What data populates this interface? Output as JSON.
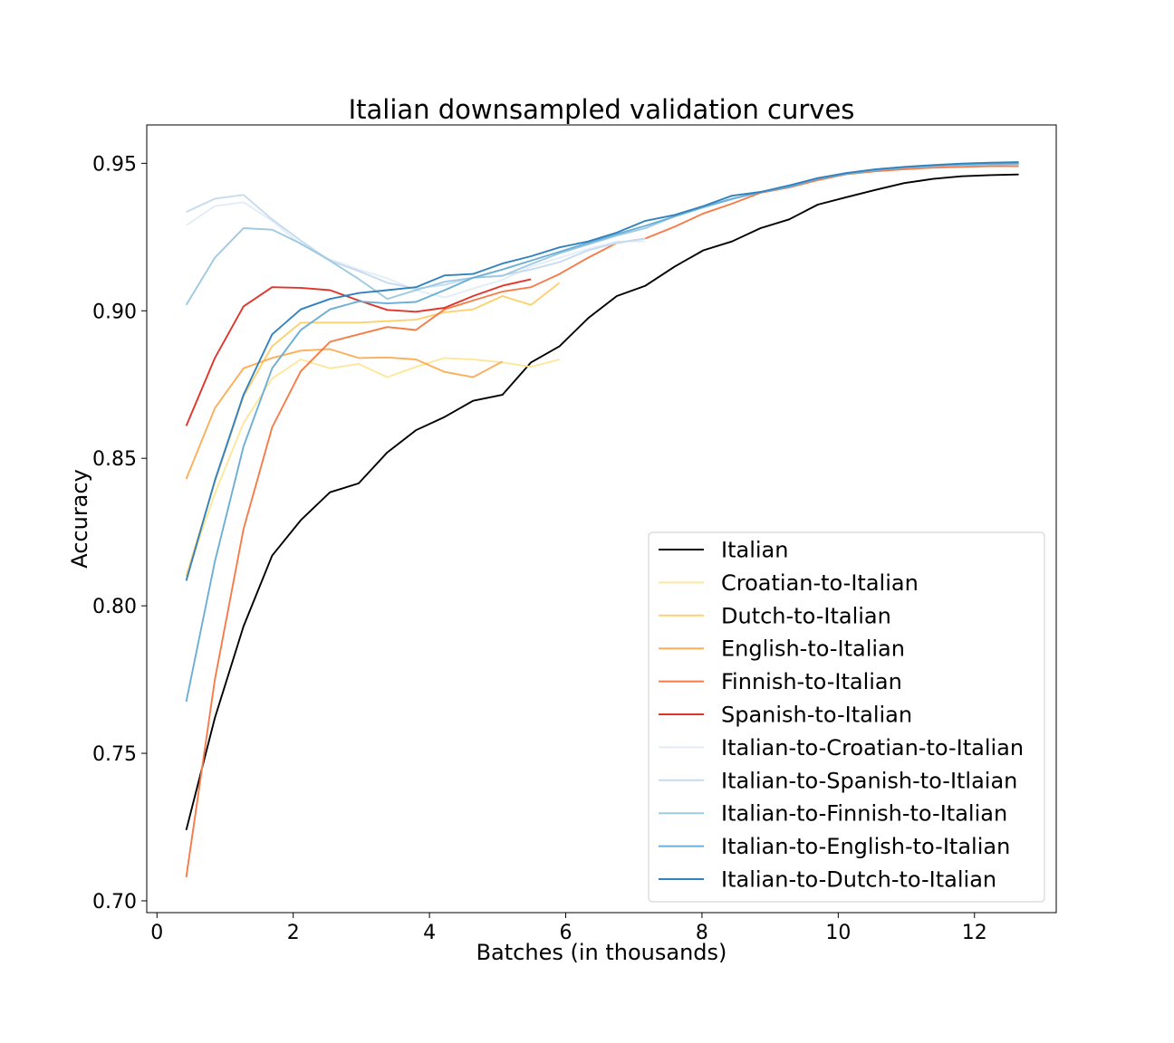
{
  "chart_data": {
    "type": "line",
    "title": "Italian downsampled validation curves",
    "xlabel": "Batches (in thousands)",
    "ylabel": "Accuracy",
    "xlim": [
      -0.15,
      13.2
    ],
    "ylim": [
      0.696,
      0.963
    ],
    "xticks": [
      0,
      2,
      4,
      6,
      8,
      10,
      12
    ],
    "xtick_labels": [
      "0",
      "2",
      "4",
      "6",
      "8",
      "10",
      "12"
    ],
    "yticks": [
      0.7,
      0.75,
      0.8,
      0.85,
      0.9,
      0.95
    ],
    "ytick_labels": [
      "0.70",
      "0.75",
      "0.80",
      "0.85",
      "0.90",
      "0.95"
    ],
    "grid": false,
    "legend_position": "lower-right",
    "series": [
      {
        "name": "Italian",
        "color": "#000000",
        "x": [
          0.43,
          0.85,
          1.27,
          1.69,
          2.11,
          2.54,
          2.96,
          3.38,
          3.8,
          4.22,
          4.64,
          5.07,
          5.49,
          5.91,
          6.33,
          6.75,
          7.17,
          7.6,
          8.02,
          8.44,
          8.86,
          9.28,
          9.7,
          10.12,
          10.55,
          10.97,
          11.39,
          11.81,
          12.23,
          12.65
        ],
        "y": [
          0.724,
          0.762,
          0.793,
          0.817,
          0.829,
          0.8385,
          0.8415,
          0.852,
          0.8595,
          0.864,
          0.8695,
          0.8715,
          0.8825,
          0.888,
          0.8975,
          0.905,
          0.9085,
          0.915,
          0.9205,
          0.9235,
          0.928,
          0.931,
          0.936,
          0.9385,
          0.941,
          0.9433,
          0.9447,
          0.9456,
          0.946,
          0.9462
        ]
      },
      {
        "name": "Croatian-to-Italian",
        "color": "#fde79a",
        "x": [
          0.43,
          0.85,
          1.27,
          1.69,
          2.11,
          2.54,
          2.96,
          3.38,
          3.8,
          4.22,
          4.64,
          5.07,
          5.49,
          5.91
        ],
        "y": [
          0.81,
          0.838,
          0.862,
          0.877,
          0.8835,
          0.8805,
          0.882,
          0.8775,
          0.881,
          0.884,
          0.8835,
          0.8825,
          0.881,
          0.8835
        ]
      },
      {
        "name": "Dutch-to-Italian",
        "color": "#fdd070",
        "x": [
          0.43,
          0.85,
          1.27,
          1.69,
          2.11,
          2.54,
          2.96,
          3.38,
          3.8,
          4.22,
          4.64,
          5.07,
          5.49,
          5.91
        ],
        "y": [
          0.81,
          0.842,
          0.871,
          0.888,
          0.896,
          0.896,
          0.896,
          0.8965,
          0.897,
          0.8995,
          0.9005,
          0.905,
          0.902,
          0.9095
        ]
      },
      {
        "name": "English-to-Italian",
        "color": "#fdae5a",
        "x": [
          0.43,
          0.85,
          1.27,
          1.69,
          2.11,
          2.54,
          2.96,
          3.38,
          3.8,
          4.22,
          4.64,
          5.07
        ],
        "y": [
          0.843,
          0.867,
          0.8805,
          0.884,
          0.8865,
          0.887,
          0.884,
          0.8842,
          0.8835,
          0.8793,
          0.8775,
          0.8828
        ]
      },
      {
        "name": "Finnish-to-Italian",
        "color": "#f77b48",
        "x": [
          0.43,
          0.85,
          1.27,
          1.69,
          2.11,
          2.54,
          2.96,
          3.38,
          3.8,
          4.22,
          4.64,
          5.07,
          5.49,
          5.91,
          6.33,
          6.75,
          7.17,
          7.6,
          8.02,
          8.44,
          8.86,
          9.28,
          9.7,
          10.12,
          10.55,
          10.97,
          11.39,
          11.81,
          12.23,
          12.65
        ],
        "y": [
          0.708,
          0.775,
          0.826,
          0.8605,
          0.8795,
          0.8895,
          0.892,
          0.8945,
          0.8935,
          0.9005,
          0.9035,
          0.9065,
          0.908,
          0.9125,
          0.918,
          0.923,
          0.9245,
          0.9285,
          0.933,
          0.9363,
          0.94,
          0.9418,
          0.9443,
          0.9463,
          0.9473,
          0.948,
          0.9485,
          0.9488,
          0.949,
          0.949
        ]
      },
      {
        "name": "Spanish-to-Italian",
        "color": "#e0352a",
        "x": [
          0.43,
          0.85,
          1.27,
          1.69,
          2.11,
          2.54,
          2.96,
          3.38,
          3.8,
          4.22,
          4.64,
          5.07,
          5.49
        ],
        "y": [
          0.861,
          0.884,
          0.9015,
          0.908,
          0.9078,
          0.907,
          0.9035,
          0.9003,
          0.8997,
          0.901,
          0.905,
          0.9085,
          0.9107
        ]
      },
      {
        "name": "Italian-to-Croatian-to-Italian",
        "color": "#e3edf6",
        "x": [
          0.43,
          0.85,
          1.27,
          1.69,
          2.11,
          2.54,
          2.96,
          3.38,
          3.8,
          4.22,
          4.64,
          5.07,
          5.49,
          5.91,
          6.33,
          6.75,
          7.17
        ],
        "y": [
          0.929,
          0.9355,
          0.9368,
          0.9305,
          0.9225,
          0.9175,
          0.914,
          0.911,
          0.907,
          0.9045,
          0.9075,
          0.9105,
          0.915,
          0.918,
          0.921,
          0.9235,
          0.9235
        ]
      },
      {
        "name": "Italian-to-Spanish-to-Itlaian",
        "color": "#c6dbef",
        "x": [
          0.43,
          0.85,
          1.27,
          1.69,
          2.11,
          2.54,
          2.96,
          3.38,
          3.8,
          4.22,
          4.64,
          5.07,
          5.49,
          5.91,
          6.33,
          6.75,
          7.17
        ],
        "y": [
          0.9335,
          0.938,
          0.9393,
          0.931,
          0.9238,
          0.917,
          0.9135,
          0.9095,
          0.9075,
          0.9088,
          0.9112,
          0.912,
          0.914,
          0.9165,
          0.9205,
          0.923,
          0.9245
        ]
      },
      {
        "name": "Italian-to-Finnish-to-Italian",
        "color": "#9ecae1",
        "x": [
          0.43,
          0.85,
          1.27,
          1.69,
          2.11,
          2.54,
          2.96,
          3.38,
          3.8,
          4.22,
          4.64,
          5.07,
          5.49,
          5.91,
          6.33,
          6.75,
          7.17,
          7.6,
          8.02,
          8.44,
          8.86,
          9.28,
          9.7,
          10.12,
          10.55,
          10.97,
          11.39,
          11.81,
          12.23,
          12.65
        ],
        "y": [
          0.902,
          0.918,
          0.928,
          0.9275,
          0.9228,
          0.917,
          0.9108,
          0.904,
          0.907,
          0.9098,
          0.9112,
          0.9118,
          0.9158,
          0.9195,
          0.9225,
          0.9255,
          0.928,
          0.932,
          0.935,
          0.9378,
          0.9403,
          0.9423,
          0.945,
          0.9465,
          0.9477,
          0.9485,
          0.949,
          0.9494,
          0.9496,
          0.9497
        ]
      },
      {
        "name": "Italian-to-English-to-Italian",
        "color": "#6baed6",
        "x": [
          0.43,
          0.85,
          1.27,
          1.69,
          2.11,
          2.54,
          2.96,
          3.38,
          3.8,
          4.22,
          4.64,
          5.07,
          5.49,
          5.91,
          6.33,
          6.75,
          7.17,
          7.6,
          8.02,
          8.44,
          8.86,
          9.28,
          9.7,
          10.12,
          10.55,
          10.97,
          11.39,
          11.81,
          12.23,
          12.65
        ],
        "y": [
          0.7675,
          0.815,
          0.854,
          0.8805,
          0.8935,
          0.9005,
          0.9032,
          0.9025,
          0.903,
          0.907,
          0.9112,
          0.914,
          0.917,
          0.92,
          0.923,
          0.926,
          0.9288,
          0.932,
          0.9352,
          0.938,
          0.9402,
          0.942,
          0.9447,
          0.9464,
          0.9477,
          0.9486,
          0.9492,
          0.9496,
          0.9498,
          0.9499
        ]
      },
      {
        "name": "Italian-to-Dutch-to-Italian",
        "color": "#3182bd",
        "x": [
          0.43,
          0.85,
          1.27,
          1.69,
          2.11,
          2.54,
          2.96,
          3.38,
          3.8,
          4.22,
          4.64,
          5.07,
          5.49,
          5.91,
          6.33,
          6.75,
          7.17,
          7.6,
          8.02,
          8.44,
          8.86,
          9.28,
          9.7,
          10.12,
          10.55,
          10.97,
          11.39,
          11.81,
          12.23,
          12.65
        ],
        "y": [
          0.8085,
          0.8425,
          0.8715,
          0.892,
          0.9005,
          0.904,
          0.906,
          0.907,
          0.908,
          0.912,
          0.9125,
          0.916,
          0.9185,
          0.9215,
          0.9235,
          0.9265,
          0.9305,
          0.9325,
          0.9355,
          0.939,
          0.9403,
          0.9425,
          0.945,
          0.9467,
          0.948,
          0.9488,
          0.9494,
          0.9499,
          0.9502,
          0.9504
        ]
      }
    ]
  }
}
